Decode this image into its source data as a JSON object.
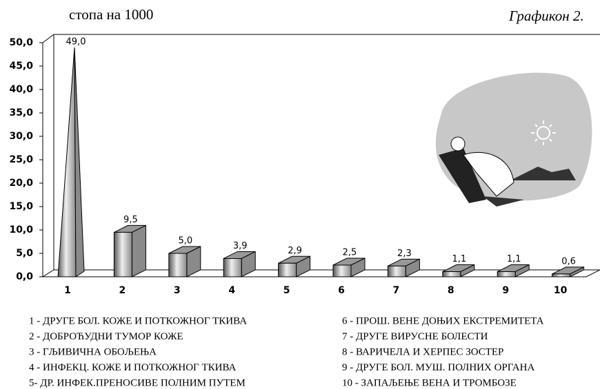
{
  "chart_data": {
    "type": "bar",
    "y_label": "стопа на 1000",
    "caption": "Графикон 2.",
    "categories": [
      "1",
      "2",
      "3",
      "4",
      "5",
      "6",
      "7",
      "8",
      "9",
      "10"
    ],
    "values": [
      49.0,
      9.5,
      5.0,
      3.9,
      2.9,
      2.5,
      2.3,
      1.1,
      1.1,
      0.6
    ],
    "value_labels": [
      "49,0",
      "9,5",
      "5,0",
      "3,9",
      "2,9",
      "2,5",
      "2,3",
      "1,1",
      "1,1",
      "0,6"
    ],
    "color": "#8a8a8a",
    "ylim": [
      0,
      50
    ],
    "yticks": [
      {
        "value": 0,
        "label": "0,0"
      },
      {
        "value": 5,
        "label": "5,0"
      },
      {
        "value": 10,
        "label": "10,0"
      },
      {
        "value": 15,
        "label": "15,0"
      },
      {
        "value": 20,
        "label": "20,0"
      },
      {
        "value": 25,
        "label": "25,0"
      },
      {
        "value": 30,
        "label": "30,0"
      },
      {
        "value": 35,
        "label": "35,0"
      },
      {
        "value": 40,
        "label": "40,0"
      },
      {
        "value": 45,
        "label": "45,0"
      },
      {
        "value": 50,
        "label": "50,0"
      }
    ],
    "notes": [
      "1 - ДРУГЕ БОЛ. КОЖЕ И ПОТКОЖНОГ ТКИВА",
      "2 - ДОБРОЋУДНИ ТУМОР КОЖЕ",
      "3 - ГЉИВИЧНА ОБОЉЕЊА",
      "4 - ИНФЕКЦ. КОЖЕ И ПОТКОЖНОГ ТКИВА",
      "5- ДР. ИНФЕК.ПРЕНОСИВЕ ПОЛНИМ ПУТЕМ",
      "6 -  ПРОШ. ВЕНЕ ДОЊИХ ЕКСТРЕМИТЕТА",
      "7 - ДРУГЕ ВИРУСНЕ БОЛЕСТИ",
      "8 - ВАРИЧЕЛА И ХЕРПЕС ЗОСТЕР",
      "9 - ДРУГЕ БОЛ. МУШ. ПОЛНИХ ОРГАНА",
      "10 - ЗАПАЉЕЊЕ ВЕНА И ТРОМБОЗЕ"
    ]
  }
}
